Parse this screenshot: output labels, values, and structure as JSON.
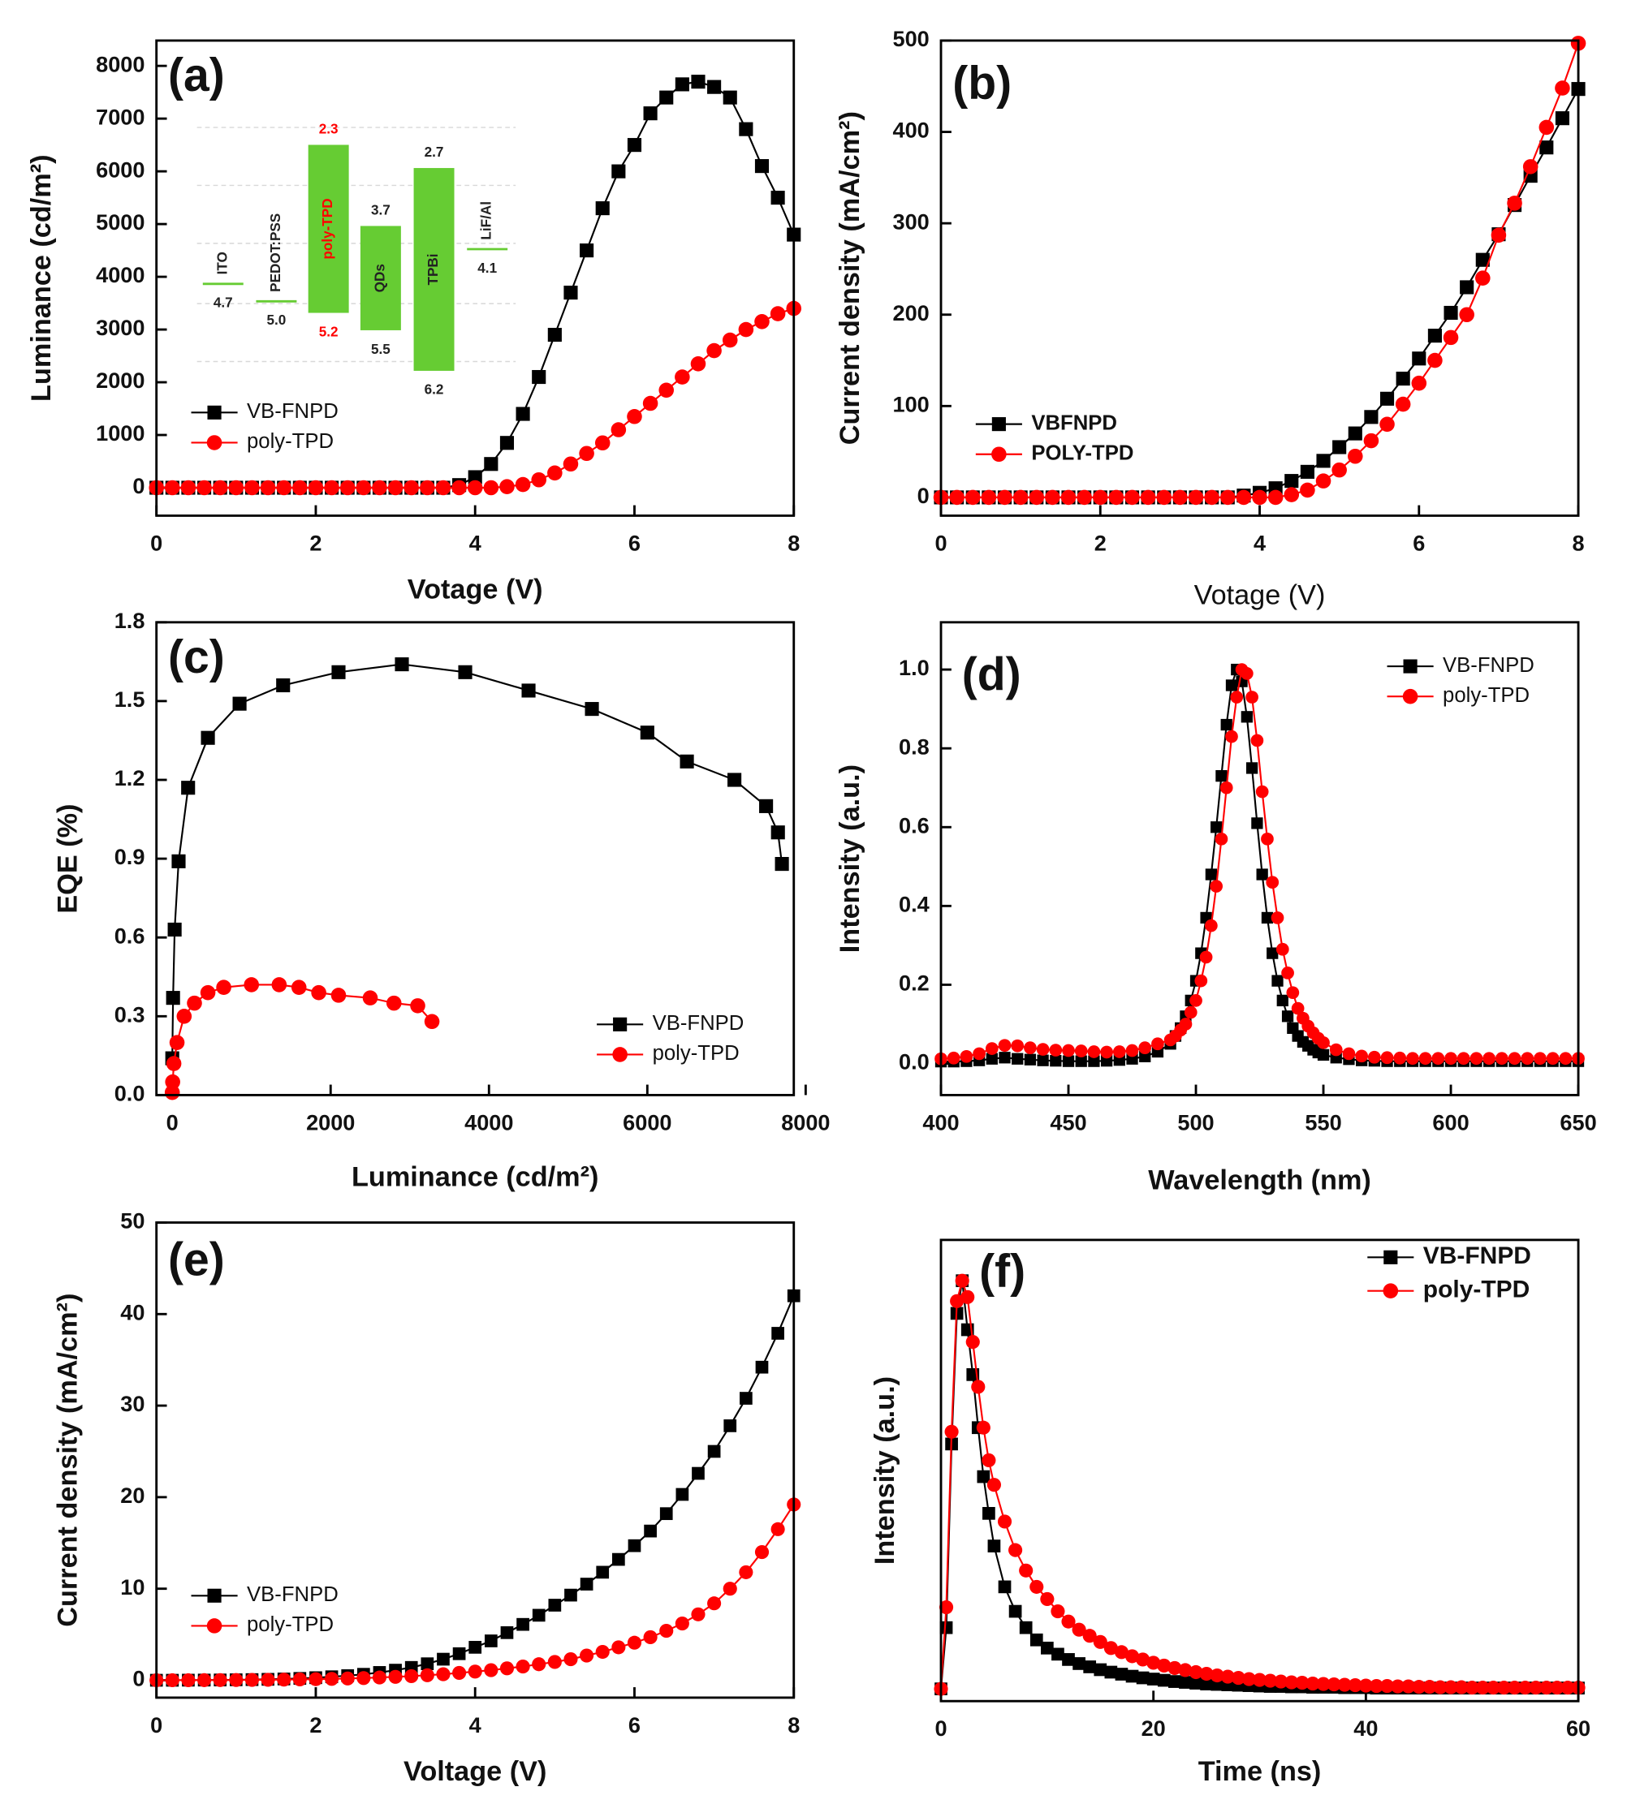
{
  "chart_data": [
    {
      "type": "line",
      "label": "(a)",
      "xlabel": "Votage (V)",
      "ylabel": "Luminance (cd/m²)",
      "xlim": [
        0,
        8
      ],
      "ylim": [
        -530,
        8480
      ],
      "xticks": [
        0,
        2,
        4,
        6,
        8
      ],
      "yticks": [
        0,
        1000,
        2000,
        3000,
        4000,
        5000,
        6000,
        7000,
        8000
      ],
      "legend": "lower left",
      "x": [
        0,
        0.2,
        0.4,
        0.6,
        0.8,
        1,
        1.2,
        1.4,
        1.6,
        1.8,
        2,
        2.2,
        2.4,
        2.6,
        2.8,
        3,
        3.2,
        3.4,
        3.6,
        3.8,
        4,
        4.2,
        4.4,
        4.6,
        4.8,
        5,
        5.2,
        5.4,
        5.6,
        5.8,
        6,
        6.2,
        6.4,
        6.6,
        6.8,
        7,
        7.2,
        7.4,
        7.6,
        7.8,
        8
      ],
      "series": [
        {
          "name": "VB-FNPD",
          "color": "#000000",
          "marker": "square",
          "values": [
            0,
            0,
            0,
            0,
            0,
            0,
            0,
            0,
            0,
            0,
            0,
            0,
            0,
            0,
            0,
            0,
            0,
            0,
            0,
            50,
            200,
            450,
            850,
            1400,
            2100,
            2900,
            3700,
            4500,
            5300,
            6000,
            6500,
            7100,
            7400,
            7650,
            7700,
            7600,
            7400,
            6800,
            6100,
            5500,
            4800
          ]
        },
        {
          "name": "poly-TPD",
          "color": "#ff0000",
          "marker": "circle",
          "values": [
            0,
            0,
            0,
            0,
            0,
            0,
            0,
            0,
            0,
            0,
            0,
            0,
            0,
            0,
            0,
            0,
            0,
            0,
            0,
            0,
            0,
            0,
            20,
            60,
            150,
            280,
            450,
            650,
            850,
            1100,
            1350,
            1600,
            1850,
            2100,
            2350,
            2600,
            2800,
            3000,
            3150,
            3300,
            3400
          ]
        }
      ],
      "inset": [
        {
          "name": "ITO",
          "homo": 4.7,
          "color": "#66cc33",
          "text_color": "#222222"
        },
        {
          "name": "PEDOT:PSS",
          "homo": 5,
          "homo_label": "5.0",
          "color": "#66cc33",
          "text_color": "#222222"
        },
        {
          "name": "poly-TPD",
          "lumo": 2.3,
          "homo": 5.2,
          "color": "#66cc33",
          "text_color": "#ff0000"
        },
        {
          "name": "QDs",
          "lumo": 3.7,
          "homo": 5.5,
          "color": "#66cc33",
          "text_color": "#222222"
        },
        {
          "name": "TPBi",
          "lumo": 2.7,
          "homo": 6.2,
          "color": "#66cc33",
          "text_color": "#222222"
        },
        {
          "name": "LiF/Al",
          "homo": 4.1,
          "color": "#66cc33",
          "text_color": "#222222"
        }
      ]
    },
    {
      "type": "line",
      "label": "(b)",
      "xlabel": "Votage (V)",
      "ylabel": "Current density (mA/cm²)",
      "xlim": [
        0,
        8
      ],
      "ylim": [
        -20,
        500
      ],
      "xticks": [
        0,
        2,
        4,
        6,
        8
      ],
      "yticks": [
        0,
        100,
        200,
        300,
        400,
        500
      ],
      "legend": "lower left",
      "x": [
        0,
        0.2,
        0.4,
        0.6,
        0.8,
        1,
        1.2,
        1.4,
        1.6,
        1.8,
        2,
        2.2,
        2.4,
        2.6,
        2.8,
        3,
        3.2,
        3.4,
        3.6,
        3.8,
        4,
        4.2,
        4.4,
        4.6,
        4.8,
        5,
        5.2,
        5.4,
        5.6,
        5.8,
        6,
        6.2,
        6.4,
        6.6,
        6.8,
        7,
        7.2,
        7.4,
        7.6,
        7.8,
        8
      ],
      "series": [
        {
          "name": "VBFNPD",
          "color": "#000000",
          "marker": "square",
          "values": [
            0,
            0,
            0,
            0,
            0,
            0,
            0,
            0,
            0,
            0,
            0,
            0,
            0,
            0,
            0,
            0,
            0,
            0,
            0,
            2,
            5,
            10,
            18,
            28,
            40,
            55,
            70,
            88,
            108,
            130,
            152,
            177,
            202,
            230,
            260,
            288,
            320,
            352,
            383,
            415,
            447
          ]
        },
        {
          "name": "POLY-TPD",
          "color": "#ff0000",
          "marker": "circle",
          "values": [
            0,
            0,
            0,
            0,
            0,
            0,
            0,
            0,
            0,
            0,
            0,
            0,
            0,
            0,
            0,
            0,
            0,
            0,
            0,
            0,
            0,
            0,
            3,
            8,
            18,
            30,
            45,
            62,
            80,
            102,
            125,
            150,
            175,
            200,
            240,
            287,
            322,
            362,
            405,
            448,
            497
          ]
        }
      ]
    },
    {
      "type": "line",
      "label": "(c)",
      "xlabel": "Luminance (cd/m²)",
      "ylabel": "EQE (%)",
      "xlim": [
        -200,
        7850
      ],
      "ylim": [
        0,
        1.8
      ],
      "xticks": [
        0,
        2000,
        4000,
        6000,
        8000
      ],
      "yticks": [
        {
          "value": 0,
          "label": "0.0"
        },
        0.3,
        0.6,
        0.9,
        1.2,
        1.5,
        1.8
      ],
      "legend": "lower right",
      "series": [
        {
          "name": "VB-FNPD",
          "color": "#000000",
          "marker": "square",
          "x": [
            0,
            10,
            30,
            80,
            200,
            450,
            850,
            1400,
            2100,
            2900,
            3700,
            4500,
            5300,
            6000,
            6500,
            7100,
            7500,
            7650,
            7700
          ],
          "values": [
            0.14,
            0.37,
            0.63,
            0.89,
            1.17,
            1.36,
            1.49,
            1.56,
            1.61,
            1.64,
            1.61,
            1.54,
            1.47,
            1.38,
            1.27,
            1.2,
            1.1,
            1.0,
            0.88
          ]
        },
        {
          "name": "poly-TPD",
          "color": "#ff0000",
          "marker": "circle",
          "x": [
            0,
            5,
            20,
            60,
            150,
            280,
            450,
            650,
            1000,
            1350,
            1600,
            1850,
            2100,
            2500,
            2800,
            3100,
            3280
          ],
          "values": [
            0.01,
            0.05,
            0.12,
            0.2,
            0.3,
            0.35,
            0.39,
            0.41,
            0.42,
            0.42,
            0.41,
            0.39,
            0.38,
            0.37,
            0.35,
            0.34,
            0.28
          ]
        }
      ]
    },
    {
      "type": "line",
      "label": "(d)",
      "xlabel": "Wavelength (nm)",
      "ylabel": "Intensity (a.u.)",
      "xlim": [
        400,
        650
      ],
      "ylim": [
        -0.08,
        1.12
      ],
      "xticks": [
        400,
        450,
        500,
        550,
        600,
        650
      ],
      "yticks": [
        {
          "value": 0,
          "label": "0.0"
        },
        0.2,
        0.4,
        0.6,
        0.8,
        {
          "value": 1,
          "label": "1.0"
        }
      ],
      "legend": "upper right",
      "x": [
        400,
        405,
        410,
        415,
        420,
        425,
        430,
        435,
        440,
        445,
        450,
        455,
        460,
        465,
        470,
        475,
        480,
        485,
        490,
        492,
        494,
        496,
        498,
        500,
        502,
        504,
        506,
        508,
        510,
        512,
        514,
        516,
        518,
        520,
        522,
        524,
        526,
        528,
        530,
        532,
        534,
        536,
        538,
        540,
        542,
        544,
        546,
        548,
        550,
        555,
        560,
        565,
        570,
        575,
        580,
        585,
        590,
        595,
        600,
        605,
        610,
        615,
        620,
        625,
        630,
        635,
        640,
        645,
        650
      ],
      "series": [
        {
          "name": "VB-FNPD",
          "color": "#000000",
          "marker": "square",
          "values": [
            0.005,
            0.005,
            0.006,
            0.008,
            0.012,
            0.015,
            0.012,
            0.01,
            0.008,
            0.007,
            0.006,
            0.006,
            0.006,
            0.007,
            0.009,
            0.012,
            0.018,
            0.03,
            0.05,
            0.07,
            0.09,
            0.12,
            0.16,
            0.21,
            0.28,
            0.37,
            0.48,
            0.6,
            0.73,
            0.86,
            0.96,
            1,
            0.97,
            0.88,
            0.75,
            0.61,
            0.48,
            0.37,
            0.28,
            0.21,
            0.16,
            0.12,
            0.09,
            0.07,
            0.055,
            0.045,
            0.035,
            0.028,
            0.022,
            0.015,
            0.011,
            0.008,
            0.007,
            0.006,
            0.006,
            0.006,
            0.006,
            0.006,
            0.006,
            0.006,
            0.006,
            0.006,
            0.006,
            0.006,
            0.006,
            0.006,
            0.006,
            0.006,
            0.006
          ]
        },
        {
          "name": "poly-TPD",
          "color": "#ff0000",
          "marker": "circle",
          "values": [
            0.012,
            0.014,
            0.018,
            0.025,
            0.038,
            0.046,
            0.045,
            0.04,
            0.036,
            0.034,
            0.033,
            0.032,
            0.03,
            0.029,
            0.03,
            0.033,
            0.04,
            0.05,
            0.06,
            0.07,
            0.085,
            0.1,
            0.13,
            0.16,
            0.21,
            0.27,
            0.35,
            0.45,
            0.57,
            0.7,
            0.83,
            0.93,
            1,
            0.99,
            0.93,
            0.82,
            0.69,
            0.57,
            0.46,
            0.37,
            0.29,
            0.23,
            0.18,
            0.14,
            0.115,
            0.095,
            0.078,
            0.064,
            0.053,
            0.035,
            0.025,
            0.019,
            0.016,
            0.015,
            0.014,
            0.013,
            0.013,
            0.013,
            0.013,
            0.013,
            0.013,
            0.013,
            0.013,
            0.013,
            0.013,
            0.013,
            0.013,
            0.013,
            0.013
          ]
        }
      ]
    },
    {
      "type": "line",
      "label": "(e)",
      "xlabel": "Voltage (V)",
      "ylabel": "Current density (mA/cm²)",
      "xlim": [
        0,
        8
      ],
      "ylim": [
        -1.9,
        50
      ],
      "xticks": [
        0,
        2,
        4,
        6,
        8
      ],
      "yticks": [
        0,
        10,
        20,
        30,
        40,
        50
      ],
      "legend": "lower left",
      "x": [
        0,
        0.2,
        0.4,
        0.6,
        0.8,
        1,
        1.2,
        1.4,
        1.6,
        1.8,
        2,
        2.2,
        2.4,
        2.6,
        2.8,
        3,
        3.2,
        3.4,
        3.6,
        3.8,
        4,
        4.2,
        4.4,
        4.6,
        4.8,
        5,
        5.2,
        5.4,
        5.6,
        5.8,
        6,
        6.2,
        6.4,
        6.6,
        6.8,
        7,
        7.2,
        7.4,
        7.6,
        7.8,
        8
      ],
      "series": [
        {
          "name": "VB-FNPD",
          "color": "#000000",
          "marker": "square",
          "values": [
            0,
            0,
            0.01,
            0.02,
            0.03,
            0.05,
            0.07,
            0.1,
            0.14,
            0.2,
            0.28,
            0.38,
            0.5,
            0.65,
            0.85,
            1.1,
            1.4,
            1.8,
            2.3,
            2.9,
            3.6,
            4.3,
            5.2,
            6.1,
            7.1,
            8.2,
            9.3,
            10.5,
            11.8,
            13.2,
            14.7,
            16.3,
            18.2,
            20.3,
            22.6,
            25,
            27.8,
            30.8,
            34.2,
            37.9,
            42
          ]
        },
        {
          "name": "poly-TPD",
          "color": "#ff0000",
          "marker": "circle",
          "values": [
            0,
            0,
            0,
            0.01,
            0.02,
            0.03,
            0.04,
            0.05,
            0.07,
            0.09,
            0.12,
            0.15,
            0.19,
            0.24,
            0.3,
            0.37,
            0.45,
            0.55,
            0.66,
            0.8,
            0.95,
            1.1,
            1.3,
            1.5,
            1.75,
            2,
            2.3,
            2.7,
            3.1,
            3.6,
            4.1,
            4.7,
            5.4,
            6.2,
            7.2,
            8.4,
            10,
            11.8,
            14,
            16.5,
            19.2
          ]
        }
      ]
    },
    {
      "type": "line",
      "label": "(f)",
      "xlabel": "Time (ns)",
      "ylabel": "Intensity (a.u.)",
      "xlim": [
        0,
        60
      ],
      "ylim": [
        -0.03,
        1.1
      ],
      "xticks": [
        0,
        20,
        40,
        60
      ],
      "legend": "upper right",
      "x": [
        0,
        0.5,
        1,
        1.5,
        2,
        2.5,
        3,
        3.5,
        4,
        4.5,
        5,
        6,
        7,
        8,
        9,
        10,
        11,
        12,
        13,
        14,
        15,
        16,
        17,
        18,
        19,
        20,
        21,
        22,
        23,
        24,
        25,
        26,
        27,
        28,
        29,
        30,
        31,
        32,
        33,
        34,
        35,
        36,
        37,
        38,
        39,
        40,
        41,
        42,
        43,
        44,
        45,
        46,
        47,
        48,
        49,
        50,
        51,
        52,
        53,
        54,
        55,
        56,
        57,
        58,
        59,
        60
      ],
      "series": [
        {
          "name": "VB-FNPD",
          "color": "#000000",
          "marker": "square",
          "values": [
            0,
            0.15,
            0.6,
            0.92,
            1,
            0.88,
            0.77,
            0.64,
            0.52,
            0.43,
            0.35,
            0.25,
            0.19,
            0.15,
            0.12,
            0.1,
            0.085,
            0.072,
            0.062,
            0.054,
            0.047,
            0.041,
            0.036,
            0.031,
            0.027,
            0.024,
            0.021,
            0.018,
            0.016,
            0.014,
            0.012,
            0.011,
            0.01,
            0.009,
            0.008,
            0.007,
            0.006,
            0.006,
            0.005,
            0.005,
            0.004,
            0.004,
            0.004,
            0.003,
            0.003,
            0.003,
            0.002,
            0.002,
            0.002,
            0.002,
            0.002,
            0.002,
            0.002,
            0.002,
            0.002,
            0.002,
            0.002,
            0.002,
            0.002,
            0.002,
            0.002,
            0.002,
            0.002,
            0.002,
            0.002,
            0.002
          ]
        },
        {
          "name": "poly-TPD",
          "color": "#ff0000",
          "marker": "circle",
          "values": [
            0,
            0.2,
            0.63,
            0.95,
            1,
            0.96,
            0.85,
            0.74,
            0.64,
            0.56,
            0.5,
            0.41,
            0.34,
            0.29,
            0.25,
            0.22,
            0.19,
            0.165,
            0.145,
            0.13,
            0.115,
            0.1,
            0.09,
            0.08,
            0.072,
            0.064,
            0.057,
            0.051,
            0.046,
            0.041,
            0.037,
            0.033,
            0.03,
            0.027,
            0.024,
            0.022,
            0.02,
            0.018,
            0.016,
            0.015,
            0.013,
            0.012,
            0.011,
            0.01,
            0.009,
            0.008,
            0.007,
            0.007,
            0.006,
            0.006,
            0.005,
            0.005,
            0.004,
            0.004,
            0.004,
            0.003,
            0.003,
            0.003,
            0.003,
            0.003,
            0.003,
            0.003,
            0.003,
            0.003,
            0.003,
            0.003
          ]
        }
      ]
    }
  ]
}
